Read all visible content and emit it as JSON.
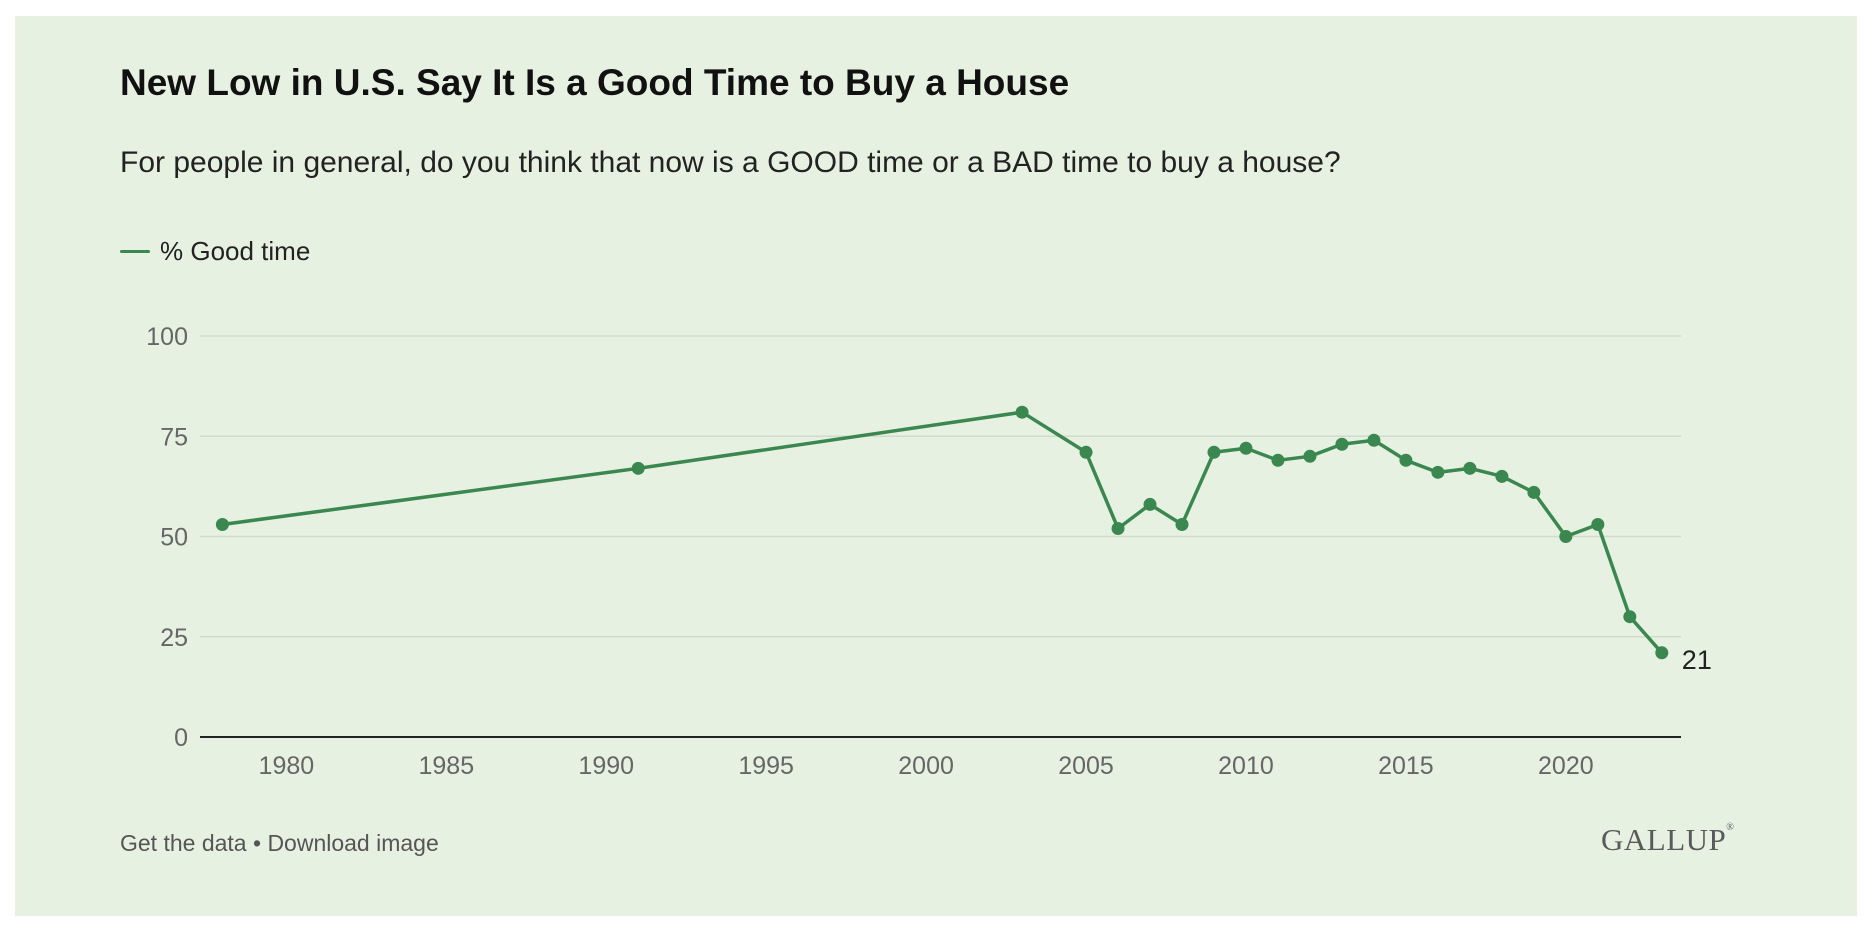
{
  "header": {
    "title": "New Low in U.S. Say It Is a Good Time to Buy a House",
    "subtitle": "For people in general, do you think that now is a GOOD time or a BAD time to buy a house?"
  },
  "legend": {
    "label": "% Good time"
  },
  "footer": {
    "get_data": "Get the data",
    "separator": " • ",
    "download": "Download image",
    "brand": "GALLUP",
    "brand_mark": "®"
  },
  "colors": {
    "background": "#e7f1e2",
    "line": "#3b8750",
    "gridline": "#cfdccb",
    "axis": "#222222",
    "tick_text": "#666666"
  },
  "chart_data": {
    "type": "line",
    "title": "New Low in U.S. Say It Is a Good Time to Buy a House",
    "subtitle": "For people in general, do you think that now is a GOOD time or a BAD time to buy a house?",
    "xlabel": "",
    "ylabel": "",
    "xlim": [
      1977.3,
      2023.6
    ],
    "ylim": [
      0,
      100
    ],
    "x_ticks": [
      1980,
      1985,
      1990,
      1995,
      2000,
      2005,
      2010,
      2015,
      2020
    ],
    "y_ticks": [
      0,
      25,
      50,
      75,
      100
    ],
    "grid": "horizontal",
    "legend_position": "top-left",
    "series": [
      {
        "name": "% Good time",
        "color": "#3b8750",
        "x": [
          1978,
          1991,
          2003,
          2005,
          2006,
          2007,
          2008,
          2009,
          2010,
          2011,
          2012,
          2013,
          2014,
          2015,
          2016,
          2017,
          2018,
          2019,
          2020,
          2021,
          2022,
          2023
        ],
        "values": [
          53,
          67,
          81,
          71,
          52,
          58,
          53,
          71,
          72,
          69,
          70,
          73,
          74,
          69,
          66,
          67,
          65,
          61,
          50,
          53,
          30,
          21
        ]
      }
    ],
    "annotations": [
      {
        "x": 2023,
        "text": "21"
      }
    ]
  }
}
